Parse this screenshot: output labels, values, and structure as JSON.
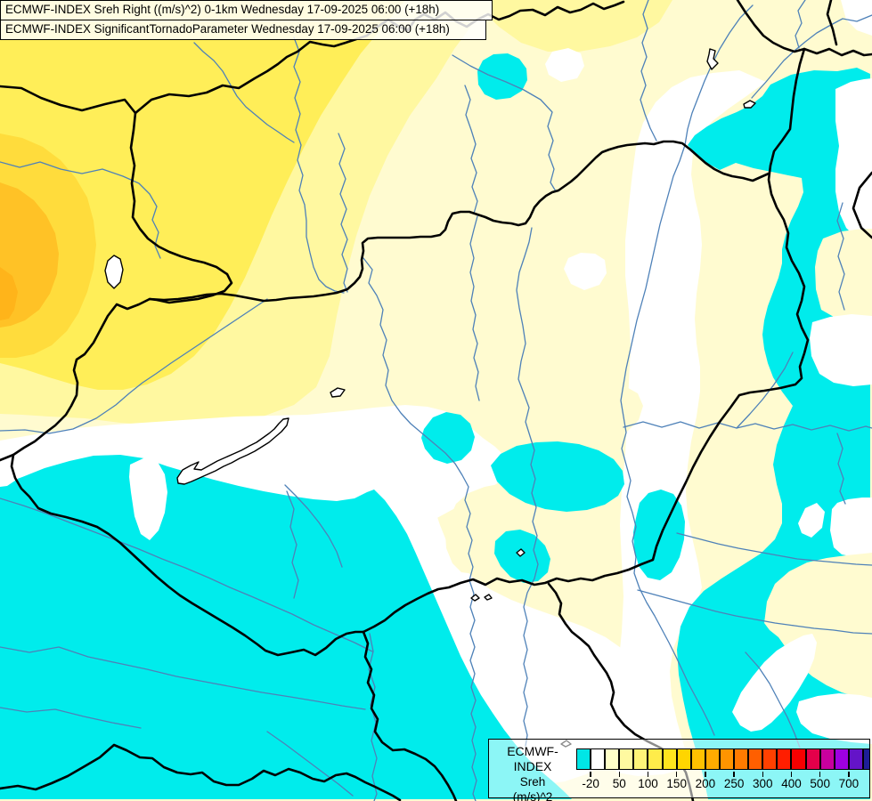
{
  "titles": {
    "line1": "ECMWF-INDEX Sreh Right ((m/s)^2) 0-1km Wednesday 17-09-2025 06:00 (+18h)",
    "line2": "ECMWF-INDEX SignificantTornadoParameter Wednesday 17-09-2025 06:00 (+18h)"
  },
  "legend": {
    "title": "ECMWF-INDEX",
    "parameter": "Sreh",
    "units": "(m/s)^2",
    "tick_labels": [
      "-20",
      "50",
      "100",
      "150",
      "200",
      "250",
      "300",
      "400",
      "500",
      "700"
    ],
    "tick_boundary_indices": [
      1,
      3,
      5,
      7,
      9,
      11,
      13,
      15,
      17,
      19
    ],
    "cell_colors": [
      "#00E6E6",
      "#FFFFFF",
      "#FFFFC8",
      "#FFF9A0",
      "#FFF478",
      "#FFEC4A",
      "#FFE41E",
      "#FFD500",
      "#FFC100",
      "#FFAB00",
      "#FF9400",
      "#FF7B00",
      "#FF5F00",
      "#FF4000",
      "#FF1E00",
      "#F70000",
      "#E4004A",
      "#C8009E",
      "#9E00E0",
      "#6414C8",
      "#1E1E96"
    ]
  },
  "map": {
    "palette": {
      "cream": "#FFFBD0",
      "lightyellow": "#FFF8A0",
      "yellow": "#FFEE58",
      "gold": "#FFDC3C",
      "orange": "#FFC226",
      "deeporange": "#FFB41A",
      "cyan": "#00ECEC",
      "white": "#FFFFFF",
      "river": "#4E81B8",
      "border": "#000000"
    }
  }
}
